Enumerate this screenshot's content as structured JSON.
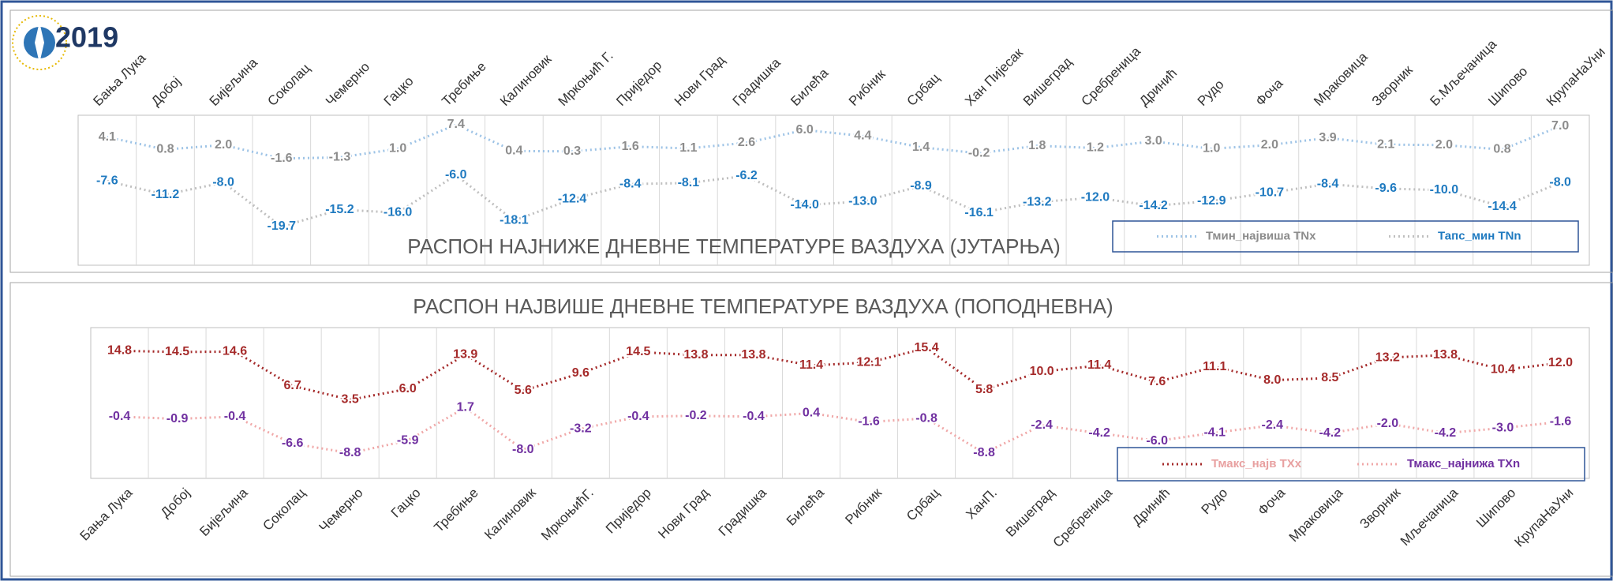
{
  "logo_year": "2019",
  "chart_data": [
    {
      "type": "line",
      "title": "РАСПОН НАЈНИЖЕ ДНЕВНЕ ТЕМПЕРАТУРЕ ВАЗДУХА (ЈУТАРЊА)",
      "categories": [
        "Бања Лука",
        "Добој",
        "Бијељина",
        "Соколац",
        "Чемерно",
        "Гацко",
        "Требиње",
        "Калиновик",
        "Мркоњић Г.",
        "Приједор",
        "Нови Град",
        "Градишка",
        "Билећа",
        "Рибник",
        "Србац",
        "Хан Пијесак",
        "Вишеград",
        "Сребреница",
        "Дринић",
        "Рудо",
        "Фоча",
        "Мраковица",
        "Зворник",
        "Б.Мљечаница",
        "Шипово",
        "КрупаНаУни"
      ],
      "category_position": "top",
      "series": [
        {
          "name": "Тмин_највиша   TNx",
          "color": "#9dc3e6",
          "label_color": "#8c8c8c",
          "values": [
            4.1,
            0.8,
            2.0,
            -1.6,
            -1.3,
            1.0,
            7.4,
            0.4,
            0.3,
            1.6,
            1.1,
            2.6,
            6.0,
            4.4,
            1.4,
            -0.2,
            1.8,
            1.2,
            3.0,
            1.0,
            2.0,
            3.9,
            2.1,
            2.0,
            0.8,
            7.0
          ],
          "value_labels": [
            "4.1",
            "0.8",
            "2.0",
            "-1.6",
            "-1.3",
            "1.0",
            "7.4",
            "0.4",
            "0.3",
            "1.6",
            "1.1",
            "2.6",
            "6.0",
            "4.4",
            "1.4",
            "-0.2",
            "1.8",
            "1.2",
            "3.0",
            "1.0",
            "2.0",
            "3.9",
            "2.1",
            "2.0",
            "0.8",
            "7.0"
          ]
        },
        {
          "name": "Тапс_мин  TNn",
          "color": "#bfbfbf",
          "label_color": "#1f7ac0",
          "values": [
            -7.6,
            -11.2,
            -8.0,
            -19.7,
            -15.2,
            -16.0,
            -6.0,
            -18.1,
            -12.4,
            -8.4,
            -8.1,
            -6.2,
            -14.0,
            -13.0,
            -8.9,
            -16.1,
            -13.2,
            -12.0,
            -14.2,
            -12.9,
            -10.7,
            -8.4,
            -9.6,
            -10.0,
            -14.4,
            -8.0
          ],
          "value_labels": [
            "-7.6",
            "-11.2",
            "-8.0",
            "-19.7",
            "-15.2",
            "-16.0",
            "-6.0",
            "-18.1",
            "-12.4",
            "-8.4",
            "-8.1",
            "-6.2",
            "-14.0",
            "-13.0",
            "-8.9",
            "-16.1",
            "-13.2",
            "-12.0",
            "-14.2",
            "-12.9",
            "-10.7",
            "-8.4",
            "-9.6",
            "-10.0",
            "-14.4",
            "-8.0"
          ]
        }
      ]
    },
    {
      "type": "line",
      "title": "РАСПОН НАЈВИШЕ ДНЕВНЕ ТЕМПЕРАТУРЕ ВАЗДУХА (ПОПОДНЕВНА)",
      "categories": [
        "Бања Лука",
        "Добој",
        "Бијељина",
        "Соколац",
        "Чемерно",
        "Гацко",
        "Требиње",
        "Калиновик",
        "МркоњићГ.",
        "Приједор",
        "Нови Град",
        "Градишка",
        "Билећа",
        "Рибник",
        "Србац",
        "ХанП.",
        "Вишеград",
        "Сребреница",
        "Дринић",
        "Рудо",
        "Фоча",
        "Мраковица",
        "Зворник",
        "Мљечаница",
        "Шипово",
        "КрупаНаУни"
      ],
      "category_position": "bottom",
      "series": [
        {
          "name": "Тмакс_најв TXx",
          "color": "#a52a2a",
          "label_color": "#a52a2a",
          "legend_text_color": "#e8a0a0",
          "values": [
            14.8,
            14.5,
            14.6,
            6.7,
            3.5,
            6.0,
            13.9,
            5.6,
            9.6,
            14.5,
            13.8,
            13.8,
            11.4,
            12.1,
            15.4,
            5.8,
            10.0,
            11.4,
            7.6,
            11.1,
            8.0,
            8.5,
            13.2,
            13.8,
            10.4,
            12.0
          ],
          "value_labels": [
            "14.8",
            "14.5",
            "14.6",
            "6.7",
            "3.5",
            "6.0",
            "13.9",
            "5.6",
            "9.6",
            "14.5",
            "13.8",
            "13.8",
            "11.4",
            "12.1",
            "15.4",
            "5.8",
            "10.0",
            "11.4",
            "7.6",
            "11.1",
            "8.0",
            "8.5",
            "13.2",
            "13.8",
            "10.4",
            "12.0"
          ]
        },
        {
          "name": "Тмакс_најнижа  TXn",
          "color": "#f0a8a8",
          "label_color": "#7030a0",
          "values": [
            -0.4,
            -0.9,
            -0.4,
            -6.6,
            -8.8,
            -5.9,
            1.7,
            -8.0,
            -3.2,
            -0.4,
            -0.2,
            -0.4,
            0.4,
            -1.6,
            -0.8,
            -8.8,
            -2.4,
            -4.2,
            -6.0,
            -4.1,
            -2.4,
            -4.2,
            -2.0,
            -4.2,
            -3.0,
            -1.6
          ],
          "value_labels": [
            "-0.4",
            "-0.9",
            "-0.4",
            "-6.6",
            "-8.8",
            "-5.9",
            "1.7",
            "-8.0",
            "-3.2",
            "-0.4",
            "-0.2",
            "-0.4",
            "0.4",
            "-1.6",
            "-0.8",
            "-8.8",
            "-2.4",
            "-4.2",
            "-6.0",
            "-4.1",
            "-2.4",
            "-4.2",
            "-2.0",
            "-4.2",
            "-3.0",
            "-1.6"
          ]
        }
      ]
    }
  ]
}
